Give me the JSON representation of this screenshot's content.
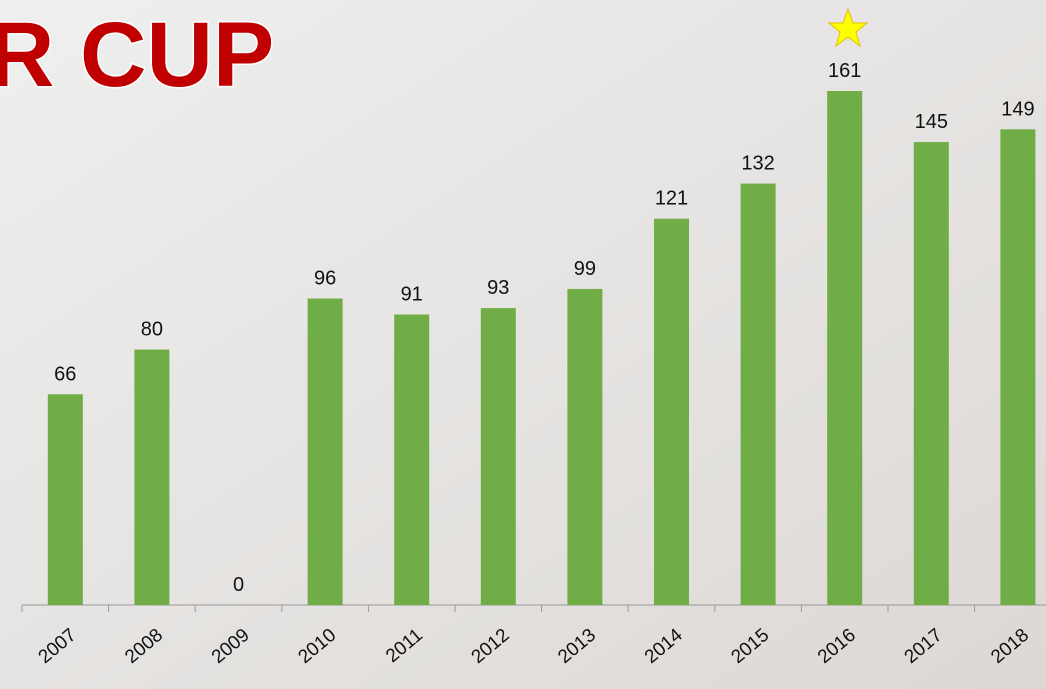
{
  "chart_data": {
    "type": "bar",
    "title": "R CUP",
    "categories": [
      "2007",
      "2008",
      "2009",
      "2010",
      "2011",
      "2012",
      "2013",
      "2014",
      "2015",
      "2016",
      "2017",
      "2018"
    ],
    "values": [
      66,
      80,
      0,
      96,
      91,
      93,
      99,
      121,
      132,
      161,
      145,
      149
    ],
    "color": "#70ad47"
  }
}
